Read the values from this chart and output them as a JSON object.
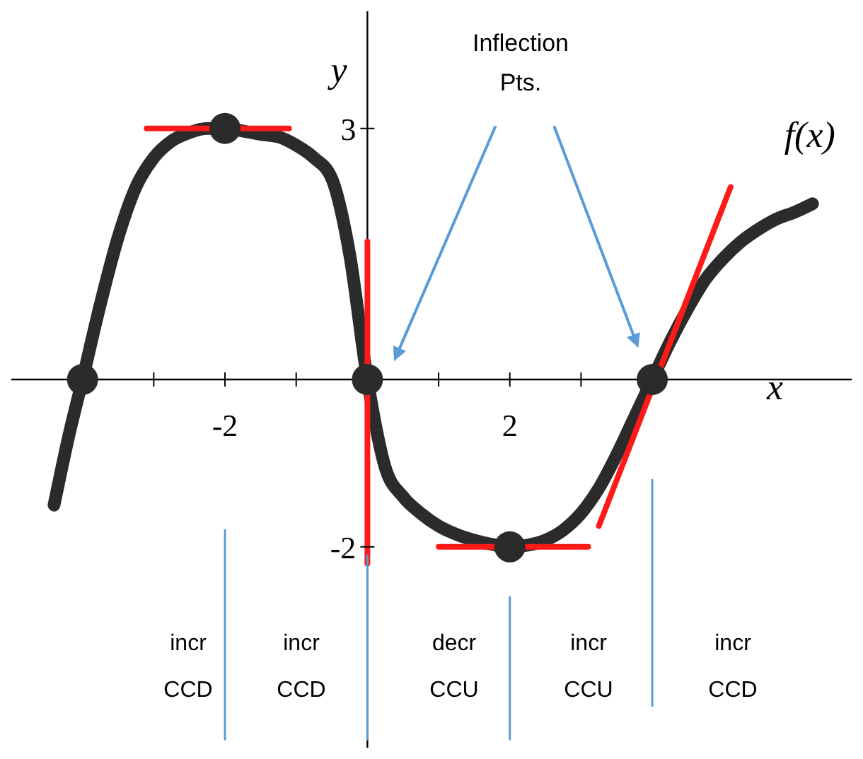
{
  "chart_data": {
    "type": "line",
    "xlabel": "x",
    "ylabel": "y",
    "xlim": [
      -5,
      6.8
    ],
    "ylim": [
      -4.4,
      4.4
    ],
    "xticks": [
      {
        "value": -3,
        "label": null
      },
      -2,
      {
        "value": -1,
        "label": null
      },
      {
        "value": 1,
        "label": null
      },
      2,
      {
        "value": 3,
        "label": null
      }
    ],
    "yticks": [
      -2,
      3
    ],
    "grid": false,
    "legend": false,
    "series": [
      {
        "name": "f(x)",
        "color": "#2b2b2b",
        "marker": "none",
        "x": [
          -4.4,
          -4.2,
          -4,
          -3.75,
          -3.5,
          -3.25,
          -3,
          -2.75,
          -2.5,
          -2.25,
          -2,
          -1.75,
          -1.5,
          -1.25,
          -1,
          -0.75,
          -0.5,
          -0.25,
          0,
          0.25,
          0.5,
          0.75,
          1,
          1.25,
          1.5,
          1.75,
          2,
          2.25,
          2.5,
          2.75,
          3,
          3.25,
          3.5,
          3.75,
          4,
          4.25,
          4.5,
          4.75,
          5,
          5.25,
          5.5,
          5.75,
          6,
          6.25
        ],
        "values": [
          -1.5,
          -0.7,
          0,
          0.9,
          1.7,
          2.3,
          2.65,
          2.85,
          2.95,
          3,
          3,
          2.97,
          2.93,
          2.9,
          2.8,
          2.65,
          2.4,
          1.5,
          0,
          -1.05,
          -1.4,
          -1.6,
          -1.75,
          -1.85,
          -1.92,
          -1.97,
          -2,
          -1.98,
          -1.92,
          -1.8,
          -1.6,
          -1.3,
          -0.9,
          -0.45,
          0,
          0.45,
          0.85,
          1.2,
          1.45,
          1.65,
          1.8,
          1.92,
          2,
          2.1
        ]
      },
      {
        "type": "scatter",
        "color": "#2b2b2b",
        "marker": "circle",
        "x": [
          -4,
          -2,
          0,
          2,
          4
        ],
        "values": [
          0,
          3,
          0,
          -2,
          0
        ]
      },
      {
        "type": "line",
        "color": "#ff1a1a",
        "marker": "none",
        "x": [
          -3.1,
          -1.1
        ],
        "values": [
          3,
          3
        ]
      },
      {
        "type": "line",
        "color": "#ff1a1a",
        "marker": "none",
        "x": [
          0,
          0
        ],
        "values": [
          1.65,
          -2.2
        ]
      },
      {
        "type": "line",
        "color": "#ff1a1a",
        "marker": "none",
        "x": [
          1,
          3.1
        ],
        "values": [
          -2,
          -2
        ]
      },
      {
        "type": "line",
        "color": "#ff1a1a",
        "marker": "none",
        "x": [
          3.25,
          5.1
        ],
        "values": [
          -1.75,
          2.3
        ]
      },
      {
        "type": "line",
        "color": "#5b9bd5",
        "marker": "none",
        "x": [
          -2,
          -2
        ],
        "values": [
          -1.8,
          -4.3
        ]
      },
      {
        "type": "line",
        "color": "#5b9bd5",
        "marker": "none",
        "x": [
          0,
          0
        ],
        "values": [
          -2.1,
          -4.3
        ]
      },
      {
        "type": "line",
        "color": "#5b9bd5",
        "marker": "none",
        "x": [
          2,
          2
        ],
        "values": [
          -2.6,
          -4.3
        ]
      },
      {
        "type": "line",
        "color": "#5b9bd5",
        "marker": "none",
        "x": [
          4,
          4
        ],
        "values": [
          -1.2,
          -3.9
        ]
      }
    ],
    "annotations": [
      "Inflection Pts.",
      "incr",
      "CCD",
      "incr",
      "CCD",
      "decr",
      "CCU",
      "incr",
      "CCU",
      "incr",
      "CCD"
    ]
  }
}
